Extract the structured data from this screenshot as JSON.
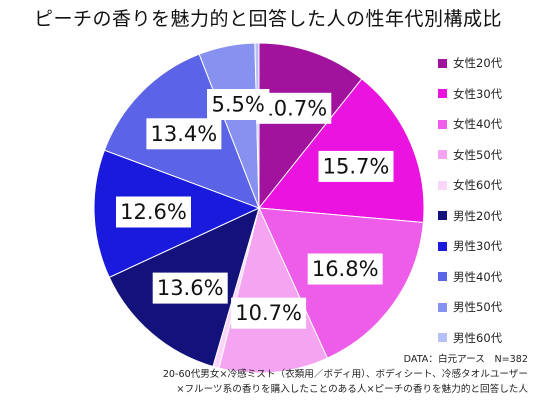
{
  "title": "ピーチの香りを魅力的と回答した人の性年代別構成比",
  "chart_data": {
    "type": "pie",
    "title": "ピーチの香りを魅力的と回答した人の性年代別構成比",
    "start": "12 o'clock, clockwise",
    "slices": [
      {
        "label": "女性20代",
        "value": 10.7,
        "value_label": "10.7%",
        "color": "#a1129d"
      },
      {
        "label": "女性30代",
        "value": 15.7,
        "value_label": "15.7%",
        "color": "#ea13e0"
      },
      {
        "label": "女性40代",
        "value": 16.8,
        "value_label": "16.8%",
        "color": "#ee5cea"
      },
      {
        "label": "女性50代",
        "value": 10.7,
        "value_label": "10.7%",
        "color": "#f5a4f2"
      },
      {
        "label": "女性60代",
        "value": 0.6,
        "value_label": "",
        "color": "#fbd4f9"
      },
      {
        "label": "男性20代",
        "value": 13.6,
        "value_label": "13.6%",
        "color": "#12127a"
      },
      {
        "label": "男性30代",
        "value": 12.6,
        "value_label": "12.6%",
        "color": "#1a1adc"
      },
      {
        "label": "男性40代",
        "value": 13.4,
        "value_label": "13.4%",
        "color": "#5b64e6"
      },
      {
        "label": "男性50代",
        "value": 5.5,
        "value_label": "5.5%",
        "color": "#8792f0"
      },
      {
        "label": "男性60代",
        "value": 0.4,
        "value_label": "",
        "color": "#b7bff7"
      }
    ],
    "legend_position": "right"
  },
  "legend": [
    {
      "label": "女性20代",
      "color": "#a1129d"
    },
    {
      "label": "女性30代",
      "color": "#ea13e0"
    },
    {
      "label": "女性40代",
      "color": "#ee5cea"
    },
    {
      "label": "女性50代",
      "color": "#f5a4f2"
    },
    {
      "label": "女性60代",
      "color": "#fbd4f9"
    },
    {
      "label": "男性20代",
      "color": "#12127a"
    },
    {
      "label": "男性30代",
      "color": "#1a1adc"
    },
    {
      "label": "男性40代",
      "color": "#5b64e6"
    },
    {
      "label": "男性50代",
      "color": "#8792f0"
    },
    {
      "label": "男性60代",
      "color": "#b7bff7"
    }
  ],
  "source": {
    "line1": "DATA：白元アース　N=382",
    "line2": "20-60代男女×冷感ミスト（衣類用／ボディ用）、ボディシート、冷感タオルユーザー",
    "line3": "×フルーツ系の香りを購入したことのある人×ピーチの香りを魅力的と回答した人"
  }
}
